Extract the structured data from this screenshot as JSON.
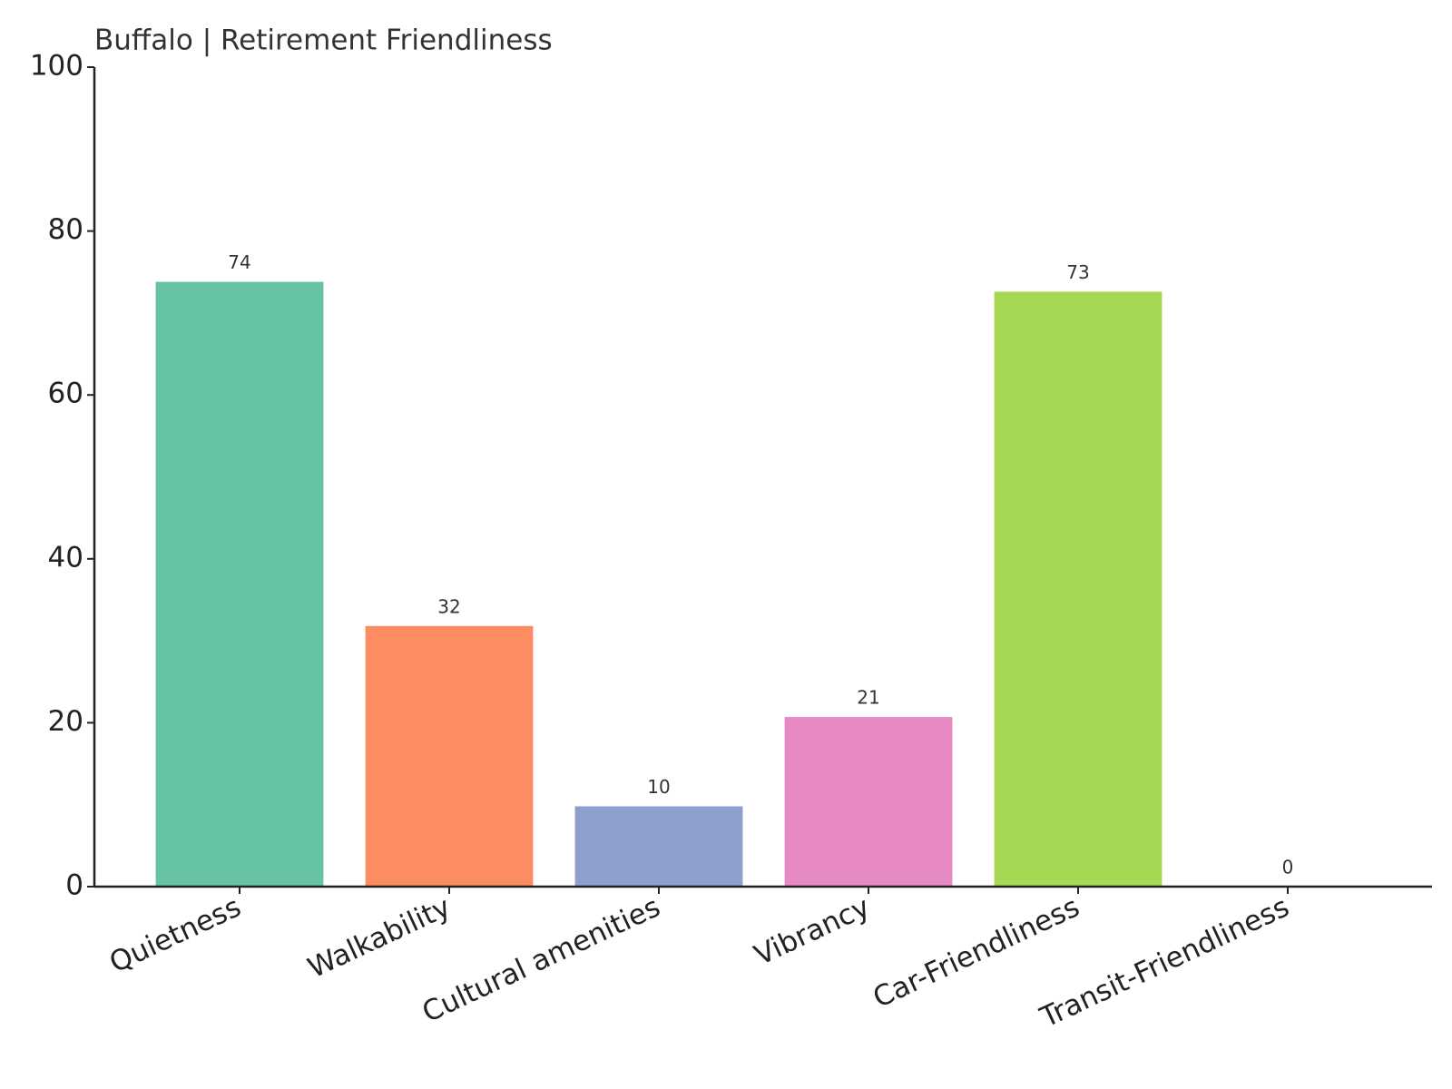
{
  "chart_data": {
    "type": "bar",
    "title": "Buffalo | Retirement Friendliness",
    "categories": [
      "Quietness",
      "Walkability",
      "Cultural amenities",
      "Vibrancy",
      "Car-Friendliness",
      "Transit-Friendliness"
    ],
    "values": [
      73.8,
      31.8,
      9.8,
      20.7,
      72.6,
      0
    ],
    "value_labels": [
      "74",
      "32",
      "10",
      "21",
      "73",
      "0"
    ],
    "colors": [
      "#66c2a5",
      "#fc8d62",
      "#8da0cb",
      "#e78ac3",
      "#a6d854",
      "#ffd92f"
    ],
    "ylim": [
      0,
      100
    ],
    "yticks": [
      0,
      20,
      40,
      60,
      80,
      100
    ]
  }
}
